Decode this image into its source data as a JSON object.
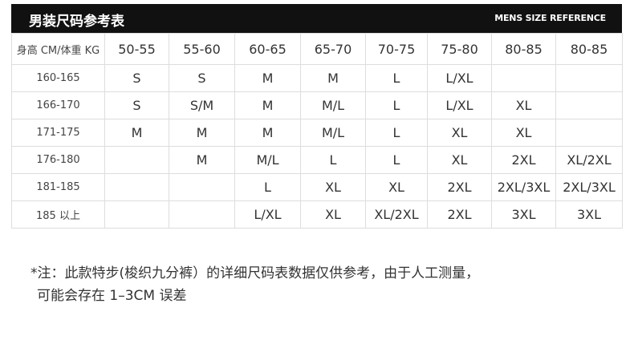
{
  "header": {
    "title": "男装尺码参考表",
    "subtitle": "MENS SIZE REFERENCE"
  },
  "table": {
    "columns": [
      "身高 CM/体重 KG",
      "50-55",
      "55-60",
      "60-65",
      "65-70",
      "70-75",
      "75-80",
      "80-85",
      "80-85"
    ],
    "rows": [
      [
        "160-165",
        "S",
        "S",
        "M",
        "M",
        "L",
        "L/XL",
        null,
        null
      ],
      [
        "166-170",
        "S",
        "S/M",
        "M",
        "M/L",
        "L",
        "L/XL",
        "XL",
        null
      ],
      [
        "171-175",
        "M",
        "M",
        "M",
        "M/L",
        "L",
        "XL",
        "XL",
        null
      ],
      [
        "176-180",
        null,
        "M",
        "M/L",
        "L",
        "L",
        "XL",
        "2XL",
        "XL/2XL"
      ],
      [
        "181-185",
        null,
        null,
        "L",
        "XL",
        "XL",
        "2XL",
        "2XL/3XL",
        "2XL/3XL"
      ],
      [
        "185 以上",
        null,
        null,
        "L/XL",
        "XL",
        "XL/2XL",
        "2XL",
        "3XL",
        "3XL"
      ]
    ]
  },
  "note": [
    "*注：此款特步(梭织九分裤）的详细尺码表数据仅供参考，由于人工测量，",
    "可能会存在 1–3CM 误差"
  ]
}
